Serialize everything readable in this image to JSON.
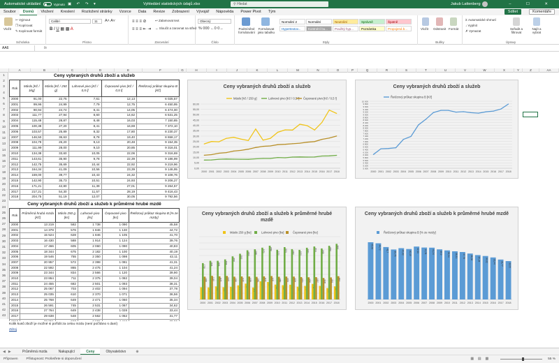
{
  "titlebar": {
    "autosave_label": "Automatické ukládání",
    "autosave_state": "Vypnuto",
    "quick_icons": "▣ ↶ ↷ ▾",
    "doc_name": "Vyhledání statistických údajů.xlsx",
    "search_placeholder": "Hledat",
    "user": "Jakub Lattenberg",
    "window_buttons": "– ☐ ✕"
  },
  "tabs": [
    "Soubor",
    "Domů",
    "Vložení",
    "Kreslení",
    "Rozložení stránky",
    "Vzorce",
    "Data",
    "Revize",
    "Zobrazení",
    "Vývojář",
    "Nápověda",
    "Power Pivot",
    "Tým"
  ],
  "active_tab": 1,
  "share_label": "Sdílet",
  "comments_label": "Komentáře",
  "ribbon": {
    "clipboard": {
      "paste": "Vložit",
      "cut": "Vyjmout",
      "copy": "Kopírovat",
      "format_painter": "Kopírovat formát",
      "label": "Schránka"
    },
    "font": {
      "name": "Calibri",
      "size": "11",
      "label": "Písmo"
    },
    "alignment": {
      "wrap": "Zalamovat text",
      "merge": "Sloučit a zarovnat na střed",
      "label": "Zarovnání"
    },
    "number": {
      "format": "Obecný",
      "label": "Číslo"
    },
    "styles": {
      "conditional": "Podmíněné formátování",
      "as_table": "Formátovat jako tabulku",
      "cells": [
        {
          "text": "Normální 2",
          "bg": "#ffffff",
          "fg": "#000000"
        },
        {
          "text": "Normální",
          "bg": "#ffffff",
          "fg": "#000000"
        },
        {
          "text": "Neutrální",
          "bg": "#ffeb9c",
          "fg": "#9c5700"
        },
        {
          "text": "Správně",
          "bg": "#c6efce",
          "fg": "#006100"
        },
        {
          "text": "Špatně",
          "bg": "#ffc7ce",
          "fg": "#9c0006"
        },
        {
          "text": "Hypertextov...",
          "bg": "#ffffff",
          "fg": "#0563c1"
        },
        {
          "text": "Kontrolní bu...",
          "bg": "#a5a5a5",
          "fg": "#ffffff"
        },
        {
          "text": "Použitý hyp...",
          "bg": "#ffffff",
          "fg": "#954f72"
        },
        {
          "text": "Poznámka",
          "bg": "#ffffcc",
          "fg": "#000000"
        },
        {
          "text": "Propojená b...",
          "bg": "#ffffff",
          "fg": "#fa7d00"
        }
      ],
      "label": "Styly"
    },
    "cells": {
      "insert": "Vložit",
      "delete": "Odstranit",
      "format": "Formát",
      "label": "Buňky"
    },
    "editing": {
      "autosum": "Automatické shrnutí",
      "fill": "Vyplnit",
      "clear": "Vymazat",
      "sort": "Seřadit a filtrovat",
      "find": "Najít a vybrat",
      "label": "Úpravy"
    }
  },
  "formula_bar": {
    "name_box": "AA6",
    "fx": "fx",
    "value": ""
  },
  "columns": [
    "A",
    "B",
    "C",
    "D",
    "E",
    "F",
    "G",
    "H",
    "I",
    "J",
    "K",
    "L",
    "M",
    "N",
    "O",
    "P",
    "Q",
    "R",
    "S",
    "T",
    "U",
    "V",
    "W",
    "X",
    "Y",
    "Z",
    "AA",
    "AB"
  ],
  "table1": {
    "title": "Ceny vybraných druhů zboží a služeb",
    "headers": [
      "Rok",
      "Máslo [Kč / 1kg]",
      "Máslo [Kč / 250 g]",
      "Lahvové pivo [Kč / 0,5 l]",
      "Čepované pivo [Kč / 0,5 l]",
      "Řetězový průkaz skupina B [Kč]"
    ],
    "rows": [
      [
        "2000",
        "91,00",
        "22,75",
        "7,61",
        "12,13",
        "6 025,57"
      ],
      [
        "2001",
        "99,96",
        "24,99",
        "7,79",
        "12,75",
        "6 450,95"
      ],
      [
        "2002",
        "90,94",
        "24,74",
        "8,41",
        "14,05",
        "6 474,00"
      ],
      [
        "2003",
        "111,77",
        "27,94",
        "8,60",
        "14,62",
        "6 531,25"
      ],
      [
        "2004",
        "115,48",
        "28,87",
        "8,48",
        "16,03",
        "7 150,85"
      ],
      [
        "2005",
        "100,38",
        "27,20",
        "8,41",
        "16,69",
        "7 372,10"
      ],
      [
        "2006",
        "103,57",
        "25,89",
        "8,32",
        "17,80",
        "8 230,37"
      ],
      [
        "2007",
        "146,50",
        "36,63",
        "8,78",
        "19,40",
        "8 658,17"
      ],
      [
        "2008",
        "104,79",
        "26,20",
        "9,13",
        "20,48",
        "9 154,35"
      ],
      [
        "2009",
        "111,99",
        "28,00",
        "9,10",
        "20,85",
        "9 316,01"
      ],
      [
        "2010",
        "134,38",
        "33,60",
        "10,05",
        "22,06",
        "9 316,69"
      ],
      [
        "2011",
        "143,61",
        "35,90",
        "9,78",
        "22,39",
        "9 186,99"
      ],
      [
        "2012",
        "142,75",
        "35,69",
        "10,44",
        "22,92",
        "9 219,96"
      ],
      [
        "2013",
        "164,34",
        "41,09",
        "10,56",
        "23,39",
        "9 146,95"
      ],
      [
        "2014",
        "159,00",
        "39,77",
        "10,43",
        "24,32",
        "9 108,76"
      ],
      [
        "2015",
        "142,90",
        "35,73",
        "10,51",
        "24,93",
        "9 206,27"
      ],
      [
        "2016",
        "171,21",
        "42,80",
        "11,39",
        "27,01",
        "9 264,57"
      ],
      [
        "2017",
        "217,21",
        "54,30",
        "11,57",
        "28,19",
        "9 416,43"
      ],
      [
        "2018",
        "204,75",
        "51,19",
        "12,07",
        "30,05",
        "9 792,56"
      ]
    ]
  },
  "table2": {
    "title": "Ceny vybraných druhů zboží a služeb k průměrné hrubé mzdě",
    "headers": [
      "Rok",
      "Průměrná hrubá mzda [Kč]",
      "Máslo 250 g [ks]",
      "Lahvové pivo [ks]",
      "Čepované pivo [ks]",
      "Řetězový průkaz skupina B [% ze mzdy]"
    ],
    "rows": [
      [
        "2000",
        "13 219",
        "582",
        "1 738",
        "1 090",
        "45,58"
      ],
      [
        "2001",
        "14 378",
        "576",
        "1 846",
        "1 130",
        "44,72"
      ],
      [
        "2002",
        "15 524",
        "628",
        "1 846",
        "1 105",
        "41,70"
      ],
      [
        "2003",
        "16 430",
        "588",
        "1 914",
        "1 124",
        "39,76"
      ],
      [
        "2004",
        "17 466",
        "605",
        "2 060",
        "1 090",
        "40,83"
      ],
      [
        "2005",
        "18 344",
        "675",
        "2 182",
        "1 100",
        "40,19"
      ],
      [
        "2006",
        "19 546",
        "755",
        "2 350",
        "1 098",
        "42,11"
      ],
      [
        "2007",
        "20 957",
        "572",
        "2 398",
        "1 081",
        "41,31"
      ],
      [
        "2008",
        "22 592",
        "865",
        "2 475",
        "1 104",
        "41,24"
      ],
      [
        "2009",
        "23 344",
        "834",
        "2 566",
        "1 120",
        "39,90"
      ],
      [
        "2010",
        "23 864",
        "711",
        "2 375",
        "1 082",
        "39,04"
      ],
      [
        "2011",
        "24 455",
        "682",
        "2 501",
        "1 093",
        "38,31"
      ],
      [
        "2012",
        "25 067",
        "703",
        "2 402",
        "1 094",
        "37,78"
      ],
      [
        "2013",
        "25 035",
        "610",
        "2 370",
        "1 071",
        "36,56"
      ],
      [
        "2014",
        "25 768",
        "649",
        "2 471",
        "1 060",
        "35,34"
      ],
      [
        "2015",
        "26 591",
        "745",
        "2 531",
        "1 067",
        "34,62"
      ],
      [
        "2016",
        "27 764",
        "649",
        "2 438",
        "1 028",
        "33,44"
      ],
      [
        "2017",
        "29 638",
        "548",
        "2 562",
        "1 052",
        "31,77"
      ],
      [
        "2018",
        "32 051",
        "627",
        "2 655",
        "1 112",
        "30,55"
      ]
    ]
  },
  "notes": {
    "note1": "Kolik kusů zboží je možné si pořídit za celou mzdu (není počítáno s daní)",
    "note2": "Zdroj"
  },
  "sheet_tabs": [
    "Průměrná mzda",
    "Nakupující",
    "Ceny",
    "Obyvatelstvo"
  ],
  "active_sheet": 2,
  "status": {
    "ready": "Připraven",
    "accessibility": "Přístupnost: Prošetřete si doporučení",
    "zoom": "55 %"
  },
  "chart_data": [
    {
      "type": "line",
      "title": "Ceny vybraných druhů zboží a služeb",
      "x": [
        "2000",
        "2001",
        "2002",
        "2003",
        "2004",
        "2005",
        "2006",
        "2007",
        "2008",
        "2009",
        "2010",
        "2011",
        "2012",
        "2013",
        "2014",
        "2015",
        "2016",
        "2017",
        "2018"
      ],
      "series": [
        {
          "name": "Máslo [Kč / 250 g]",
          "color": "#f0c419",
          "values": [
            22.75,
            24.99,
            24.74,
            27.94,
            28.87,
            27.2,
            25.89,
            36.63,
            26.2,
            28.0,
            33.6,
            35.9,
            35.69,
            41.09,
            39.77,
            35.73,
            42.8,
            54.3,
            51.19
          ]
        },
        {
          "name": "Lahvové pivo [Kč / 0,5 l]",
          "color": "#70ad47",
          "values": [
            7.61,
            7.79,
            8.41,
            8.6,
            8.48,
            8.41,
            8.32,
            8.78,
            9.13,
            9.1,
            10.05,
            9.78,
            10.44,
            10.56,
            10.43,
            10.51,
            11.39,
            11.57,
            12.07
          ]
        },
        {
          "name": "Čepované pivo [Kč / 0,5 l]",
          "color": "#b8902a",
          "values": [
            12.13,
            12.75,
            14.05,
            14.62,
            16.03,
            16.69,
            17.8,
            19.4,
            20.48,
            20.85,
            22.06,
            22.39,
            22.92,
            23.39,
            24.32,
            24.93,
            27.01,
            28.19,
            30.05
          ]
        }
      ],
      "ylim": [
        0,
        60
      ],
      "yticks": [
        "0,00",
        "5,00",
        "10,00",
        "15,00",
        "20,00",
        "25,00",
        "30,00",
        "35,00",
        "40,00",
        "45,00",
        "50,00",
        "55,00",
        "60,00"
      ],
      "grid": true,
      "legend": "top"
    },
    {
      "type": "line",
      "title": "Ceny vybraných druhů zboží a služeb",
      "x": [
        "2000",
        "2001",
        "2002",
        "2003",
        "2004",
        "2005",
        "2006",
        "2007",
        "2008",
        "2009",
        "2010",
        "2011",
        "2012",
        "2013",
        "2014",
        "2015",
        "2016",
        "2017",
        "2018"
      ],
      "series": [
        {
          "name": "Řetězový průkaz skupina B [Kč]",
          "color": "#5b9bd5",
          "values": [
            6025.57,
            6450.95,
            6474.0,
            6531.25,
            7150.85,
            7372.1,
            8230.37,
            8658.17,
            9154.35,
            9316.01,
            9316.69,
            9186.99,
            9219.96,
            9146.95,
            9108.76,
            9206.27,
            9264.57,
            9416.43,
            9792.56
          ]
        }
      ],
      "ylim": [
        5000,
        10000
      ],
      "yticks": [
        "5 000",
        "5 200",
        "5 400",
        "5 600",
        "5 800",
        "6 000",
        "6 200",
        "6 400",
        "6 600",
        "6 800",
        "7 000",
        "7 200",
        "7 400",
        "7 600",
        "7 800",
        "8 000",
        "8 200",
        "8 400",
        "8 600",
        "8 800",
        "9 000",
        "9 200",
        "9 400",
        "9 600",
        "9 800",
        "10 000"
      ],
      "grid": true,
      "legend": "top-left"
    },
    {
      "type": "bar",
      "title": "Ceny vybraných druhů zboží a služeb k průměrné hrubé mzdě",
      "categories": [
        "2000",
        "2001",
        "2002",
        "2003",
        "2004",
        "2005",
        "2006",
        "2007",
        "2008",
        "2009",
        "2010",
        "2011",
        "2012",
        "2013",
        "2014",
        "2015",
        "2016",
        "2017",
        "2018"
      ],
      "series": [
        {
          "name": "Máslo 250 g [ks]",
          "color": "#f0c419",
          "values": [
            582,
            576,
            628,
            588,
            605,
            675,
            755,
            572,
            865,
            834,
            711,
            682,
            703,
            610,
            649,
            745,
            649,
            548,
            627
          ]
        },
        {
          "name": "Lahvové pivo [ks]",
          "color": "#70ad47",
          "values": [
            1738,
            1846,
            1846,
            1914,
            2060,
            2182,
            2350,
            2398,
            2475,
            2566,
            2375,
            2501,
            2402,
            2370,
            2471,
            2531,
            2438,
            2562,
            2655
          ]
        },
        {
          "name": "Čepované pivo [ks]",
          "color": "#b8902a",
          "values": [
            1090,
            1130,
            1105,
            1124,
            1090,
            1100,
            1098,
            1081,
            1104,
            1120,
            1082,
            1093,
            1094,
            1071,
            1060,
            1067,
            1028,
            1052,
            1112
          ]
        }
      ],
      "ylim": [
        0,
        3000
      ],
      "grid": true,
      "legend": "top"
    },
    {
      "type": "bar",
      "title": "Ceny vybraných druhů zboží a služeb k průměrné hrubé mzdě",
      "categories": [
        "2000",
        "2001",
        "2002",
        "2003",
        "2004",
        "2005",
        "2006",
        "2007",
        "2008",
        "2009",
        "2010",
        "2011",
        "2012",
        "2013",
        "2014",
        "2015",
        "2016",
        "2017",
        "2018"
      ],
      "series": [
        {
          "name": "Řetězový průkaz skupina B [% ze mzdy]",
          "color": "#5b9bd5",
          "values": [
            45.58,
            44.72,
            41.7,
            39.76,
            40.83,
            40.19,
            42.11,
            41.31,
            41.24,
            39.9,
            39.04,
            38.31,
            37.78,
            36.56,
            35.34,
            34.62,
            33.44,
            31.77,
            30.55
          ]
        }
      ],
      "ylim": [
        0,
        50
      ],
      "grid": false,
      "legend": "top-left"
    }
  ]
}
